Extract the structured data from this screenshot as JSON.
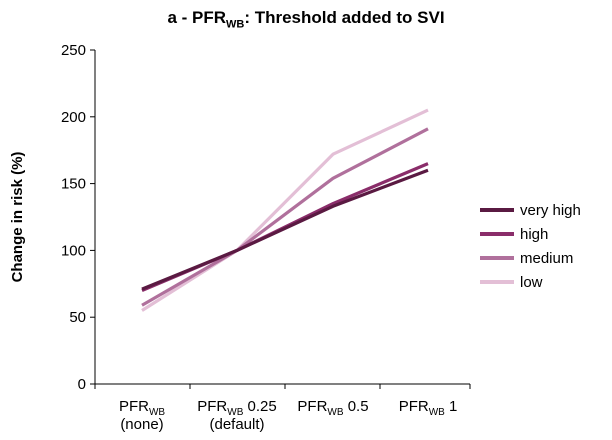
{
  "title": {
    "prefix": "a - PFR",
    "sub": "WB",
    "suffix": ": Threshold added to SVI"
  },
  "chart_data": {
    "type": "line",
    "title": "a - PFRWB: Threshold added to SVI",
    "ylabel": "Change in risk (%)",
    "ylim": [
      0,
      250
    ],
    "yticks": [
      0,
      50,
      100,
      150,
      200,
      250
    ],
    "grid": false,
    "legend_position": "right",
    "categories": [
      {
        "base": "PFR",
        "sub": "WB",
        "after": "",
        "line2": "(none)"
      },
      {
        "base": "PFR",
        "sub": "WB",
        "after": " 0.25",
        "line2": "(default)"
      },
      {
        "base": "PFR",
        "sub": "WB",
        "after": " 0.5",
        "line2": ""
      },
      {
        "base": "PFR",
        "sub": "WB",
        "after": " 1",
        "line2": ""
      }
    ],
    "series": [
      {
        "name": "very high",
        "color": "#5a1a42",
        "values": [
          71,
          100,
          133,
          160
        ]
      },
      {
        "name": "high",
        "color": "#8a2d6a",
        "values": [
          70,
          100,
          135,
          165
        ]
      },
      {
        "name": "medium",
        "color": "#b0709c",
        "values": [
          59,
          100,
          154,
          191
        ]
      },
      {
        "name": "low",
        "color": "#e3bfd6",
        "values": [
          55,
          100,
          172,
          205
        ]
      }
    ]
  }
}
